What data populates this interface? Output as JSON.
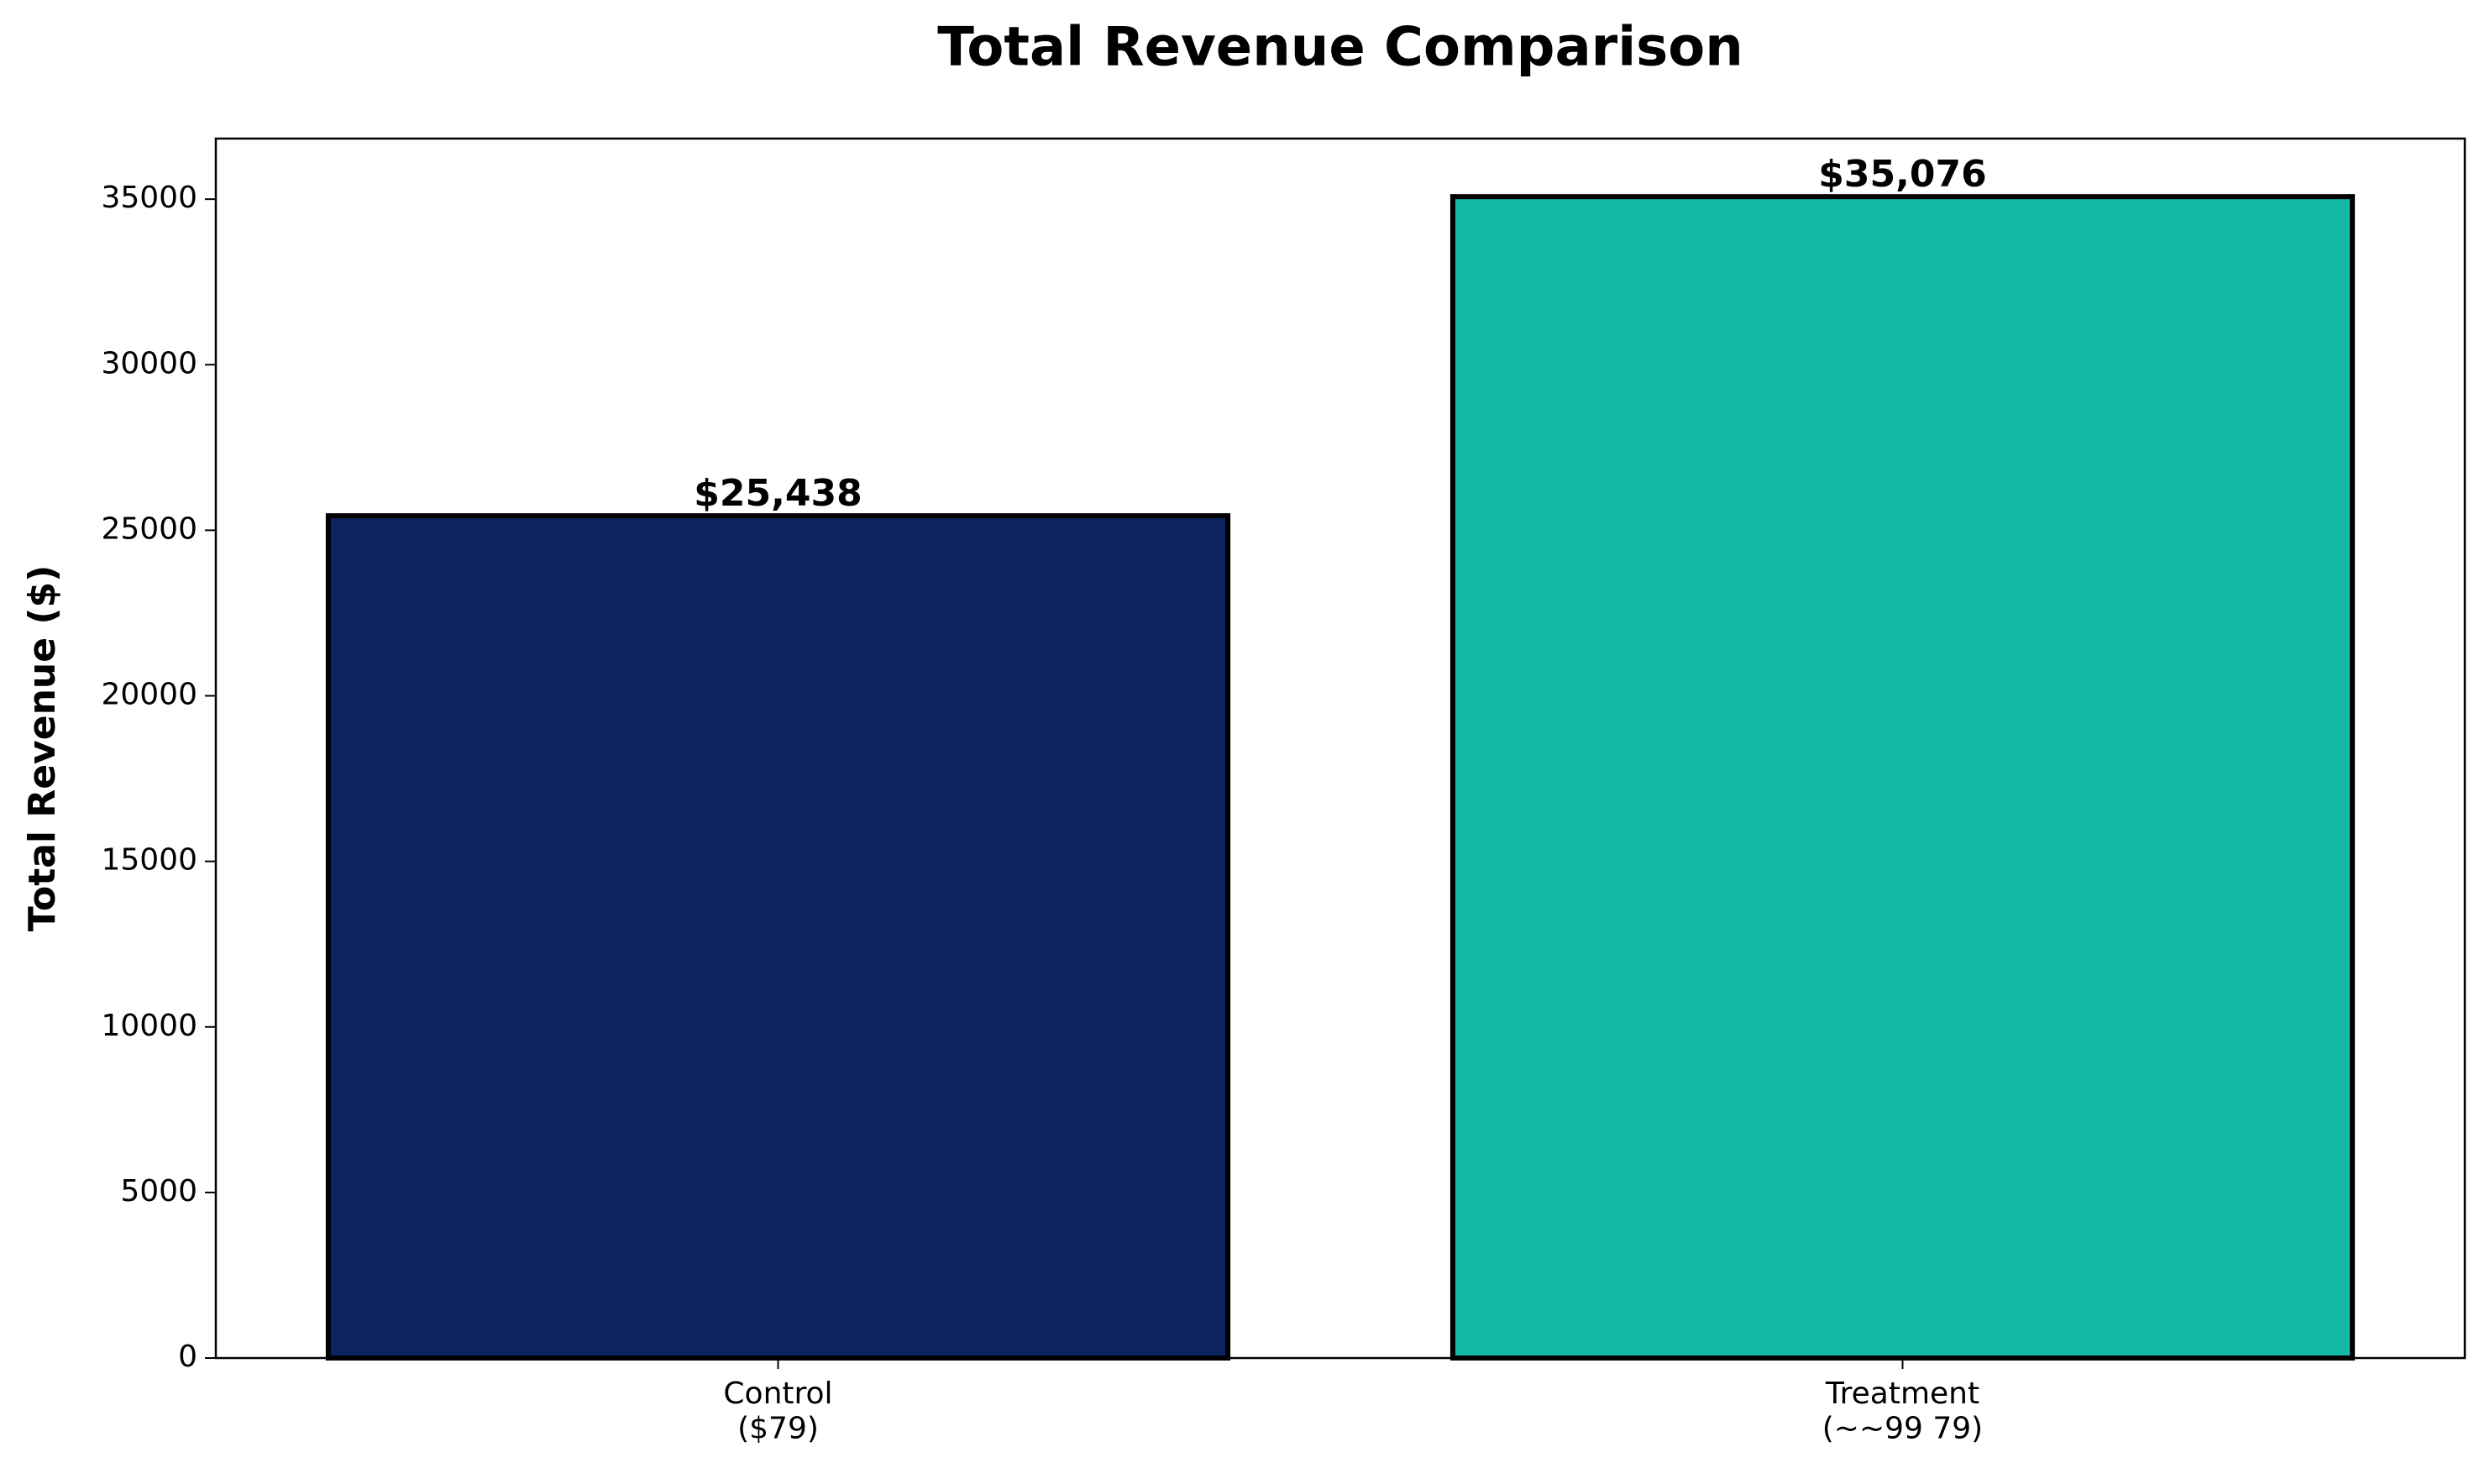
{
  "chart_data": {
    "type": "bar",
    "title": "Total Revenue Comparison",
    "y_label": "Total Revenue ($)",
    "categories": [
      "Control\n($79)",
      "Treatment\n(~~99  79)"
    ],
    "values": [
      25438,
      35076
    ],
    "value_labels": [
      "$25,438",
      "$35,076"
    ],
    "colors": [
      "#0b2361",
      "#14b8a6"
    ],
    "edge_color": "#000000",
    "ylim": [
      0,
      36830
    ],
    "yticks": [
      0,
      5000,
      10000,
      15000,
      20000,
      25000,
      30000,
      35000
    ],
    "grid": false
  }
}
